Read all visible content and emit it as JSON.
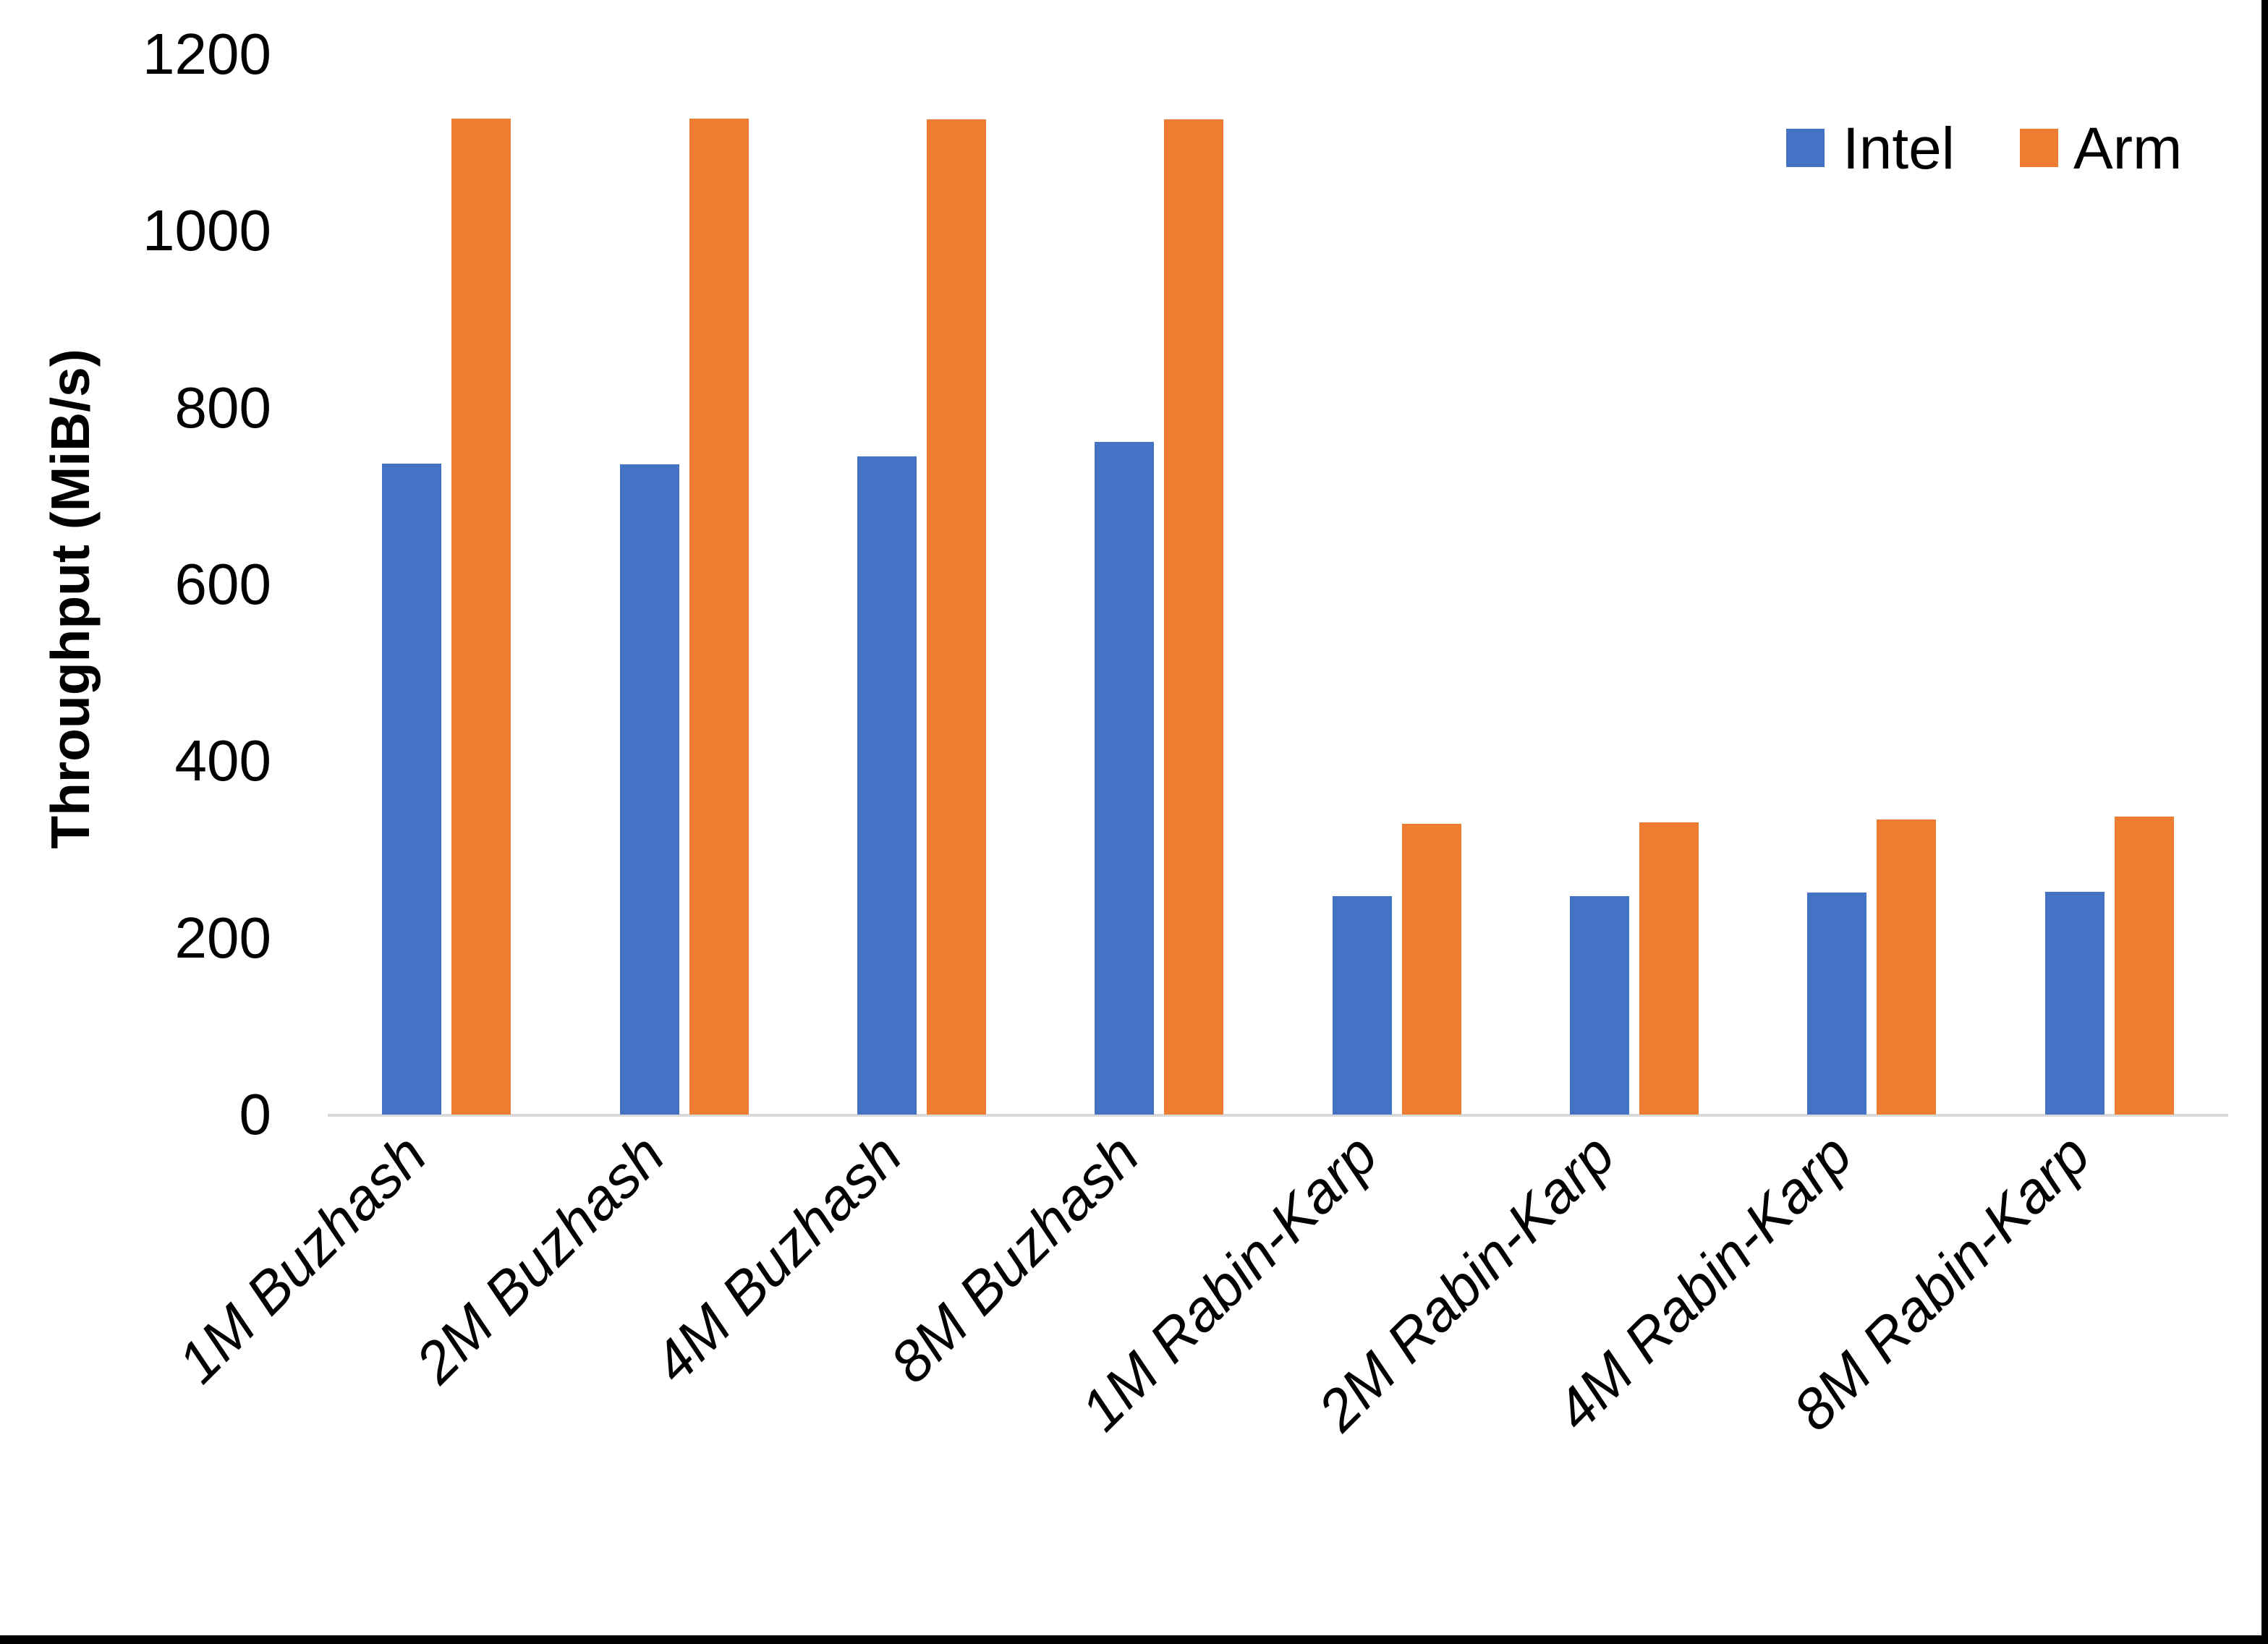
{
  "chart_data": {
    "type": "bar",
    "title": "",
    "categories": [
      "1M Buzhash",
      "2M Buzhash",
      "4M Buzhash",
      "8M Buzhash",
      "1M Rabin-Karp",
      "2M Rabin-Karp",
      "4M Rabin-Karp",
      "8M Rabin-Karp"
    ],
    "series": [
      {
        "name": "Intel",
        "color": "#4472C4",
        "values": [
          737,
          736,
          745,
          761,
          247,
          247,
          251,
          252
        ]
      },
      {
        "name": "Arm",
        "color": "#ED7D31",
        "values": [
          1127,
          1127,
          1126,
          1126,
          329,
          331,
          334,
          337
        ]
      }
    ],
    "xlabel": "",
    "ylabel": "Throughput (MiB/s)",
    "yticks": [
      0,
      200,
      400,
      600,
      800,
      1000,
      1200
    ],
    "ylim": [
      0,
      1200
    ],
    "grid": false,
    "legend_position": "top-right",
    "axis_line_color": "#D9D9D9",
    "text_color": "#000000"
  }
}
